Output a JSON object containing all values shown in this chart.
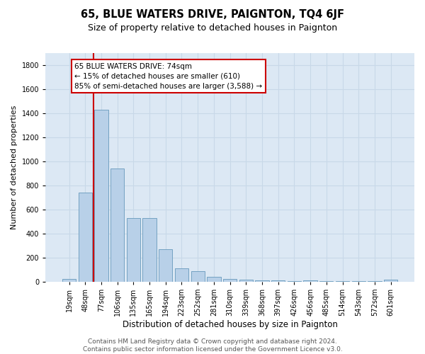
{
  "title1": "65, BLUE WATERS DRIVE, PAIGNTON, TQ4 6JF",
  "title2": "Size of property relative to detached houses in Paignton",
  "xlabel": "Distribution of detached houses by size in Paignton",
  "ylabel": "Number of detached properties",
  "categories": [
    "19sqm",
    "48sqm",
    "77sqm",
    "106sqm",
    "135sqm",
    "165sqm",
    "194sqm",
    "223sqm",
    "252sqm",
    "281sqm",
    "310sqm",
    "339sqm",
    "368sqm",
    "397sqm",
    "426sqm",
    "456sqm",
    "485sqm",
    "514sqm",
    "543sqm",
    "572sqm",
    "601sqm"
  ],
  "values": [
    25,
    740,
    1430,
    940,
    530,
    530,
    270,
    110,
    90,
    40,
    25,
    15,
    12,
    10,
    8,
    12,
    8,
    5,
    5,
    5,
    15
  ],
  "bar_color": "#b8d0e8",
  "bar_edge_color": "#6699bb",
  "vline_color": "#cc0000",
  "vline_x_index": 2,
  "annotation_text": "65 BLUE WATERS DRIVE: 74sqm\n← 15% of detached houses are smaller (610)\n85% of semi-detached houses are larger (3,588) →",
  "annotation_box_color": "#ffffff",
  "annotation_box_edge": "#cc0000",
  "ylim": [
    0,
    1900
  ],
  "yticks": [
    0,
    200,
    400,
    600,
    800,
    1000,
    1200,
    1400,
    1600,
    1800
  ],
  "grid_color": "#c8d8e8",
  "bg_color": "#dce8f4",
  "footer_text": "Contains HM Land Registry data © Crown copyright and database right 2024.\nContains public sector information licensed under the Government Licence v3.0.",
  "title1_fontsize": 10.5,
  "title2_fontsize": 9,
  "xlabel_fontsize": 8.5,
  "ylabel_fontsize": 8,
  "tick_fontsize": 7,
  "annotation_fontsize": 7.5,
  "footer_fontsize": 6.5
}
